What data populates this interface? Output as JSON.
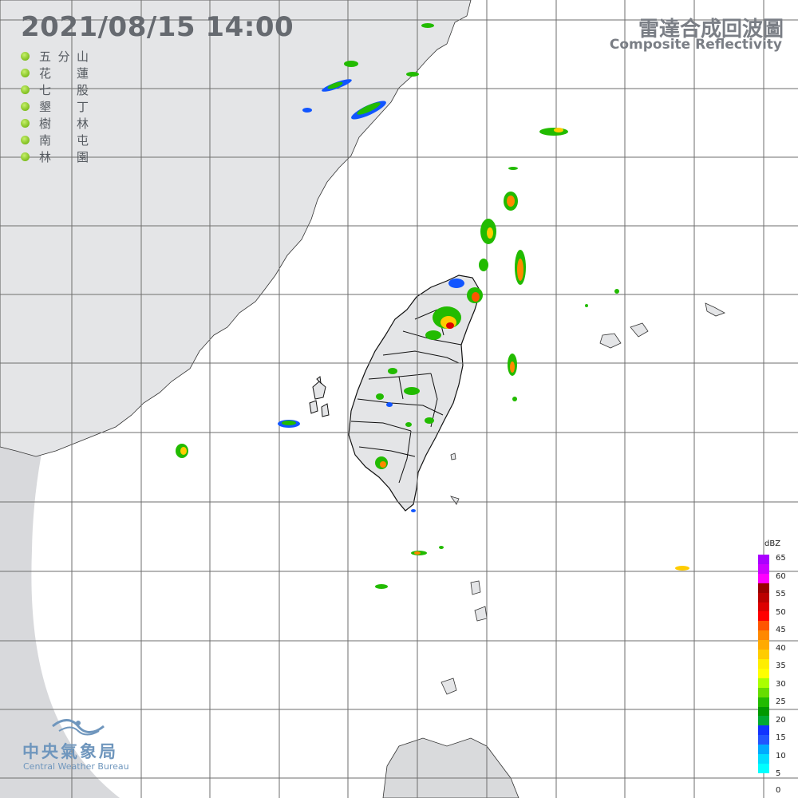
{
  "header": {
    "timestamp": "2021/08/15  14:00",
    "title_zh": "雷達合成回波圖",
    "title_en": "Composite Reflectivity"
  },
  "stations": [
    {
      "label_chars": [
        "五",
        "分",
        "山"
      ]
    },
    {
      "label_chars": [
        "花",
        "",
        "蓮"
      ]
    },
    {
      "label_chars": [
        "七",
        "",
        "股"
      ]
    },
    {
      "label_chars": [
        "墾",
        "",
        "丁"
      ]
    },
    {
      "label_chars": [
        "樹",
        "",
        "林"
      ]
    },
    {
      "label_chars": [
        "南",
        "",
        "屯"
      ]
    },
    {
      "label_chars": [
        "林",
        "",
        "園"
      ]
    }
  ],
  "legend": {
    "unit": "dBZ",
    "ticks": [
      "65",
      "60",
      "55",
      "50",
      "45",
      "40",
      "35",
      "30",
      "25",
      "20",
      "15",
      "10",
      "5",
      "0"
    ],
    "colors": [
      "#aa00ff",
      "#cc00ff",
      "#ff00ff",
      "#990000",
      "#bb0000",
      "#dd0000",
      "#ff0000",
      "#ff5500",
      "#ff8800",
      "#ffaa00",
      "#ffcc00",
      "#ffee00",
      "#ffff00",
      "#aaff00",
      "#66dd00",
      "#22bb00",
      "#009900",
      "#00aa33",
      "#1133ff",
      "#2255ff",
      "#00aaff",
      "#00ddff",
      "#00ffff"
    ]
  },
  "branding": {
    "name_zh": "中央氣象局",
    "name_en": "Central Weather Bureau"
  },
  "map_colors": {
    "background": "#d8d9dc",
    "radar_coverage": "#ffffff",
    "land": "#e4e5e7",
    "gridline": "#6e6e6e",
    "coastline": "#333333"
  }
}
